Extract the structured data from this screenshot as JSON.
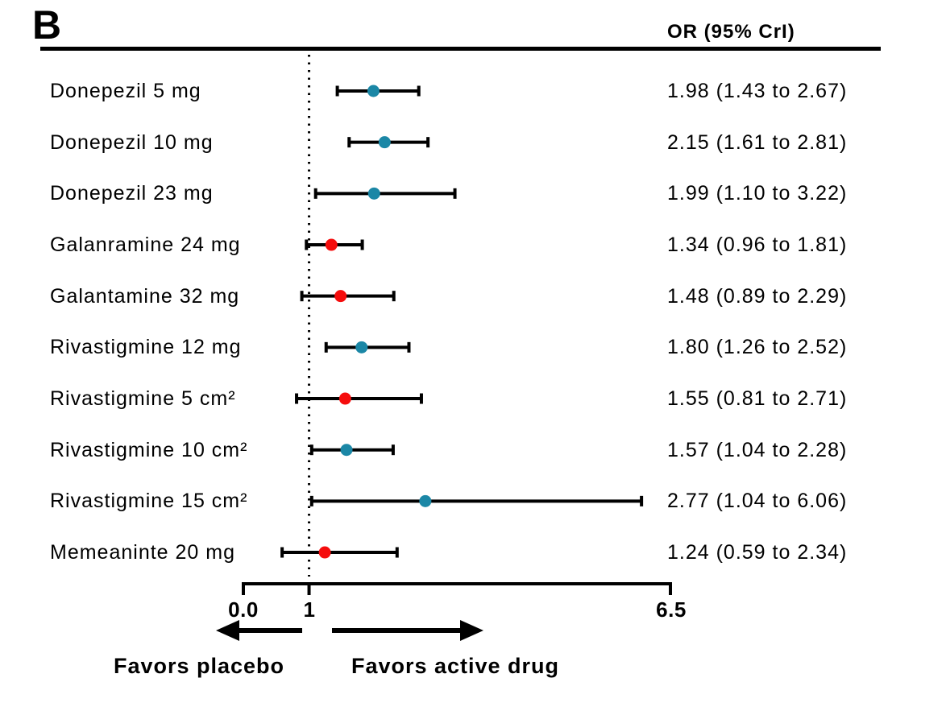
{
  "panel_label": "B",
  "column_header": "OR (95% CrI)",
  "colors": {
    "ink": "#000000",
    "teal": "#1b87a6",
    "red": "#f50d0d"
  },
  "axis": {
    "tick_labels": [
      "0.0",
      "1",
      "6.5"
    ],
    "min": 0,
    "reference": 1,
    "max": 6.5
  },
  "direction_labels": {
    "left": "Favors placebo",
    "right": "Favors active drug"
  },
  "chart_data": {
    "type": "forest",
    "title": "",
    "xlabel": "",
    "value_column_header": "OR (95% CrI)",
    "x_axis": {
      "scale": "linear",
      "range": [
        0,
        6.5
      ],
      "ticks": [
        0.0,
        1,
        6.5
      ],
      "tick_labels": [
        "0.0",
        "1",
        "6.5"
      ],
      "reference_line": 1
    },
    "rows": [
      {
        "label": "Donepezil 5 mg",
        "or": 1.98,
        "ci_low": 1.43,
        "ci_high": 2.67,
        "text": "1.98 (1.43 to 2.67)",
        "dot_color": "teal"
      },
      {
        "label": "Donepezil 10 mg",
        "or": 2.15,
        "ci_low": 1.61,
        "ci_high": 2.81,
        "text": "2.15 (1.61 to 2.81)",
        "dot_color": "teal"
      },
      {
        "label": "Donepezil 23 mg",
        "or": 1.99,
        "ci_low": 1.1,
        "ci_high": 3.22,
        "text": "1.99 (1.10 to 3.22)",
        "dot_color": "teal"
      },
      {
        "label": "Galanramine 24 mg",
        "or": 1.34,
        "ci_low": 0.96,
        "ci_high": 1.81,
        "text": "1.34 (0.96 to 1.81)",
        "dot_color": "red"
      },
      {
        "label": "Galantamine 32 mg",
        "or": 1.48,
        "ci_low": 0.89,
        "ci_high": 2.29,
        "text": "1.48 (0.89 to 2.29)",
        "dot_color": "red"
      },
      {
        "label": "Rivastigmine 12 mg",
        "or": 1.8,
        "ci_low": 1.26,
        "ci_high": 2.52,
        "text": "1.80 (1.26 to 2.52)",
        "dot_color": "teal"
      },
      {
        "label": "Rivastigmine 5 cm²",
        "or": 1.55,
        "ci_low": 0.81,
        "ci_high": 2.71,
        "text": "1.55 (0.81 to 2.71)",
        "dot_color": "red"
      },
      {
        "label": "Rivastigmine 10 cm²",
        "or": 1.57,
        "ci_low": 1.04,
        "ci_high": 2.28,
        "text": "1.57 (1.04 to 2.28)",
        "dot_color": "teal"
      },
      {
        "label": "Rivastigmine 15 cm²",
        "or": 2.77,
        "ci_low": 1.04,
        "ci_high": 6.06,
        "text": "2.77 (1.04 to 6.06)",
        "dot_color": "teal"
      },
      {
        "label": "Memeaninte 20 mg",
        "or": 1.24,
        "ci_low": 0.59,
        "ci_high": 2.34,
        "text": "1.24 (0.59 to 2.34)",
        "dot_color": "red"
      }
    ],
    "legend_position": "none",
    "grid": false
  }
}
